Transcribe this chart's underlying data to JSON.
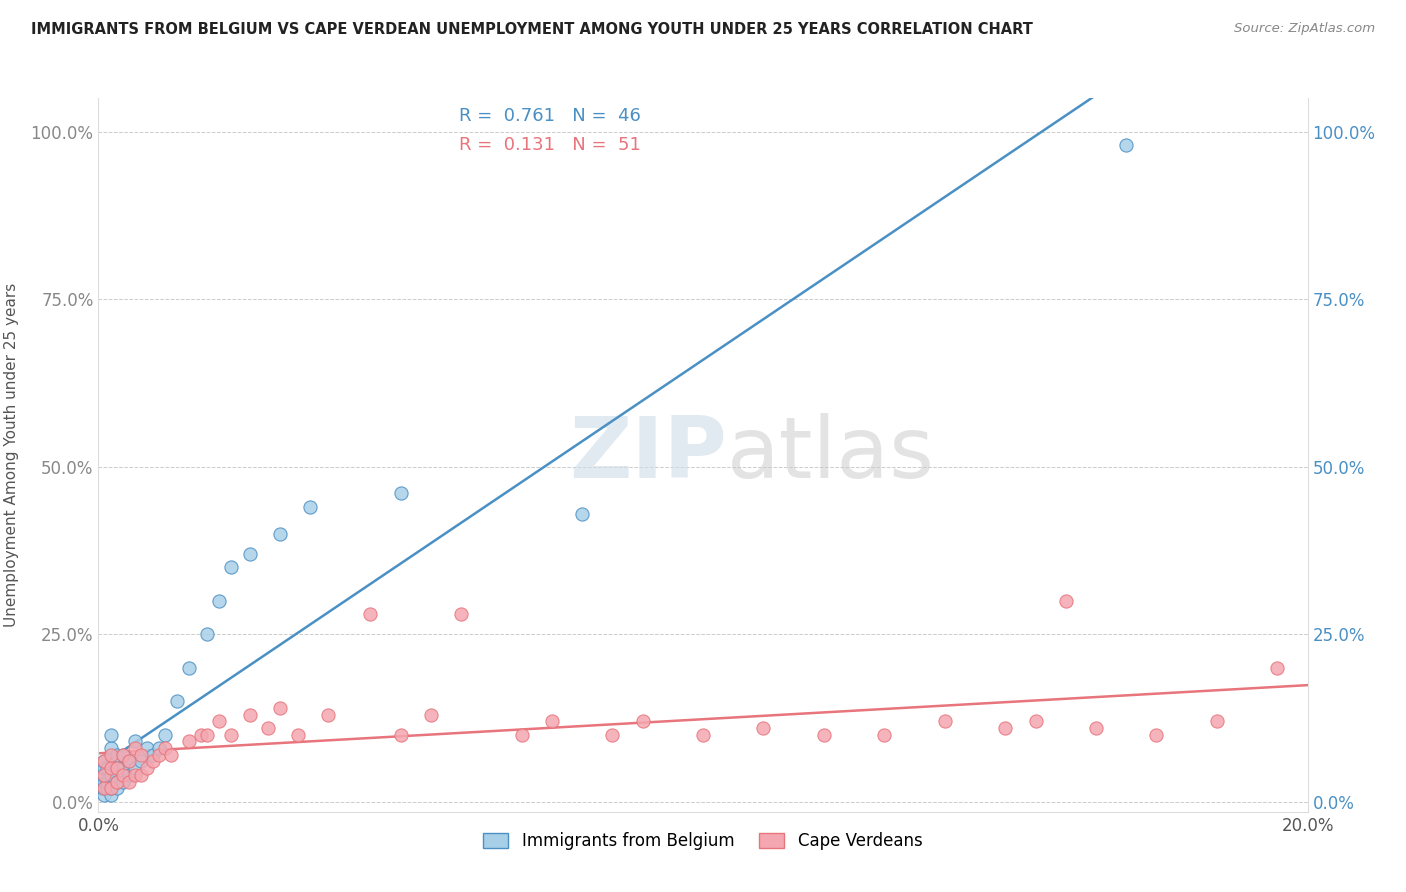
{
  "title": "IMMIGRANTS FROM BELGIUM VS CAPE VERDEAN UNEMPLOYMENT AMONG YOUTH UNDER 25 YEARS CORRELATION CHART",
  "source": "Source: ZipAtlas.com",
  "ylabel": "Unemployment Among Youth under 25 years",
  "ytick_labels": [
    "0.0%",
    "25.0%",
    "50.0%",
    "75.0%",
    "100.0%"
  ],
  "ytick_values": [
    0,
    0.25,
    0.5,
    0.75,
    1.0
  ],
  "legend_1_r": "0.761",
  "legend_1_n": "46",
  "legend_2_r": "0.131",
  "legend_2_n": "51",
  "legend_1_label": "Immigrants from Belgium",
  "legend_2_label": "Cape Verdeans",
  "color_blue": "#a8cfe8",
  "color_pink": "#f4a7b0",
  "color_blue_line": "#4a90c4",
  "color_pink_line": "#e8747c",
  "watermark_zip": "ZIP",
  "watermark_atlas": "atlas",
  "xmin": 0.0,
  "xmax": 0.2,
  "ymin": -0.015,
  "ymax": 1.05,
  "blue_x": [
    0.0005,
    0.0005,
    0.0005,
    0.0008,
    0.001,
    0.001,
    0.001,
    0.001,
    0.001,
    0.001,
    0.0015,
    0.0015,
    0.0015,
    0.002,
    0.002,
    0.002,
    0.002,
    0.002,
    0.002,
    0.003,
    0.003,
    0.003,
    0.003,
    0.004,
    0.004,
    0.004,
    0.005,
    0.005,
    0.006,
    0.006,
    0.007,
    0.008,
    0.009,
    0.01,
    0.011,
    0.013,
    0.015,
    0.018,
    0.02,
    0.022,
    0.025,
    0.03,
    0.035,
    0.05,
    0.08,
    0.17
  ],
  "blue_y": [
    0.02,
    0.03,
    0.04,
    0.02,
    0.01,
    0.02,
    0.03,
    0.04,
    0.05,
    0.06,
    0.02,
    0.03,
    0.05,
    0.01,
    0.02,
    0.03,
    0.04,
    0.08,
    0.1,
    0.02,
    0.03,
    0.05,
    0.07,
    0.03,
    0.05,
    0.07,
    0.04,
    0.06,
    0.05,
    0.09,
    0.06,
    0.08,
    0.07,
    0.08,
    0.1,
    0.15,
    0.2,
    0.25,
    0.3,
    0.35,
    0.37,
    0.4,
    0.44,
    0.46,
    0.43,
    0.98
  ],
  "pink_x": [
    0.001,
    0.001,
    0.001,
    0.002,
    0.002,
    0.002,
    0.003,
    0.003,
    0.004,
    0.004,
    0.005,
    0.005,
    0.006,
    0.006,
    0.007,
    0.007,
    0.008,
    0.009,
    0.01,
    0.011,
    0.012,
    0.015,
    0.017,
    0.018,
    0.02,
    0.022,
    0.025,
    0.028,
    0.03,
    0.033,
    0.038,
    0.045,
    0.05,
    0.055,
    0.06,
    0.07,
    0.075,
    0.085,
    0.09,
    0.1,
    0.11,
    0.12,
    0.13,
    0.14,
    0.15,
    0.155,
    0.16,
    0.165,
    0.175,
    0.185,
    0.195
  ],
  "pink_y": [
    0.02,
    0.04,
    0.06,
    0.02,
    0.05,
    0.07,
    0.03,
    0.05,
    0.04,
    0.07,
    0.03,
    0.06,
    0.04,
    0.08,
    0.04,
    0.07,
    0.05,
    0.06,
    0.07,
    0.08,
    0.07,
    0.09,
    0.1,
    0.1,
    0.12,
    0.1,
    0.13,
    0.11,
    0.14,
    0.1,
    0.13,
    0.28,
    0.1,
    0.13,
    0.28,
    0.1,
    0.12,
    0.1,
    0.12,
    0.1,
    0.11,
    0.1,
    0.1,
    0.12,
    0.11,
    0.12,
    0.3,
    0.11,
    0.1,
    0.12,
    0.2
  ]
}
